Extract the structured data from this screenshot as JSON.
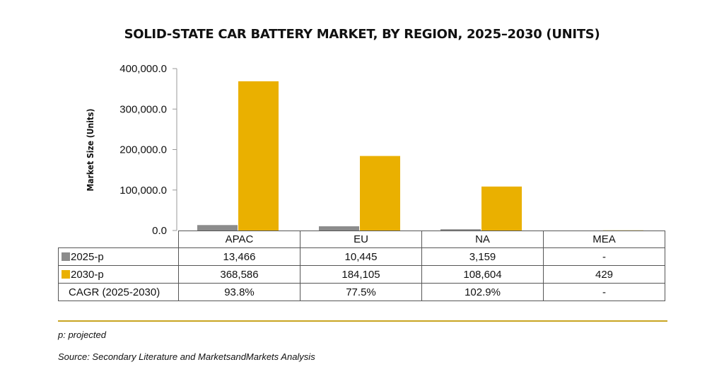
{
  "chart_data": {
    "type": "bar",
    "title": "SOLID-STATE CAR BATTERY MARKET, BY REGION, 2025–2030 (UNITS)",
    "ylabel": "Market Size (Units)",
    "xlabel": "",
    "ylim": [
      0,
      400000
    ],
    "yticks": [
      "0.0",
      "100,000.0",
      "200,000.0",
      "300,000.0",
      "400,000.0"
    ],
    "grid": false,
    "categories": [
      "APAC",
      "EU",
      "NA",
      "MEA"
    ],
    "series": [
      {
        "name": "2025-p",
        "color": "#8c8c8c",
        "values": [
          13466,
          10445,
          3159,
          null
        ],
        "labels": [
          "13,466",
          "10,445",
          "3,159",
          "-"
        ]
      },
      {
        "name": "2030-p",
        "color": "#eab000",
        "values": [
          368586,
          184105,
          108604,
          429
        ],
        "labels": [
          "368,586",
          "184,105",
          "108,604",
          "429"
        ]
      }
    ],
    "cagr": {
      "label": "CAGR (2025-2030)",
      "values": [
        "93.8%",
        "77.5%",
        "102.9%",
        "-"
      ]
    }
  },
  "notes": {
    "projected": "p: projected",
    "source": "Source: Secondary Literature and MarketsandMarkets Analysis"
  }
}
